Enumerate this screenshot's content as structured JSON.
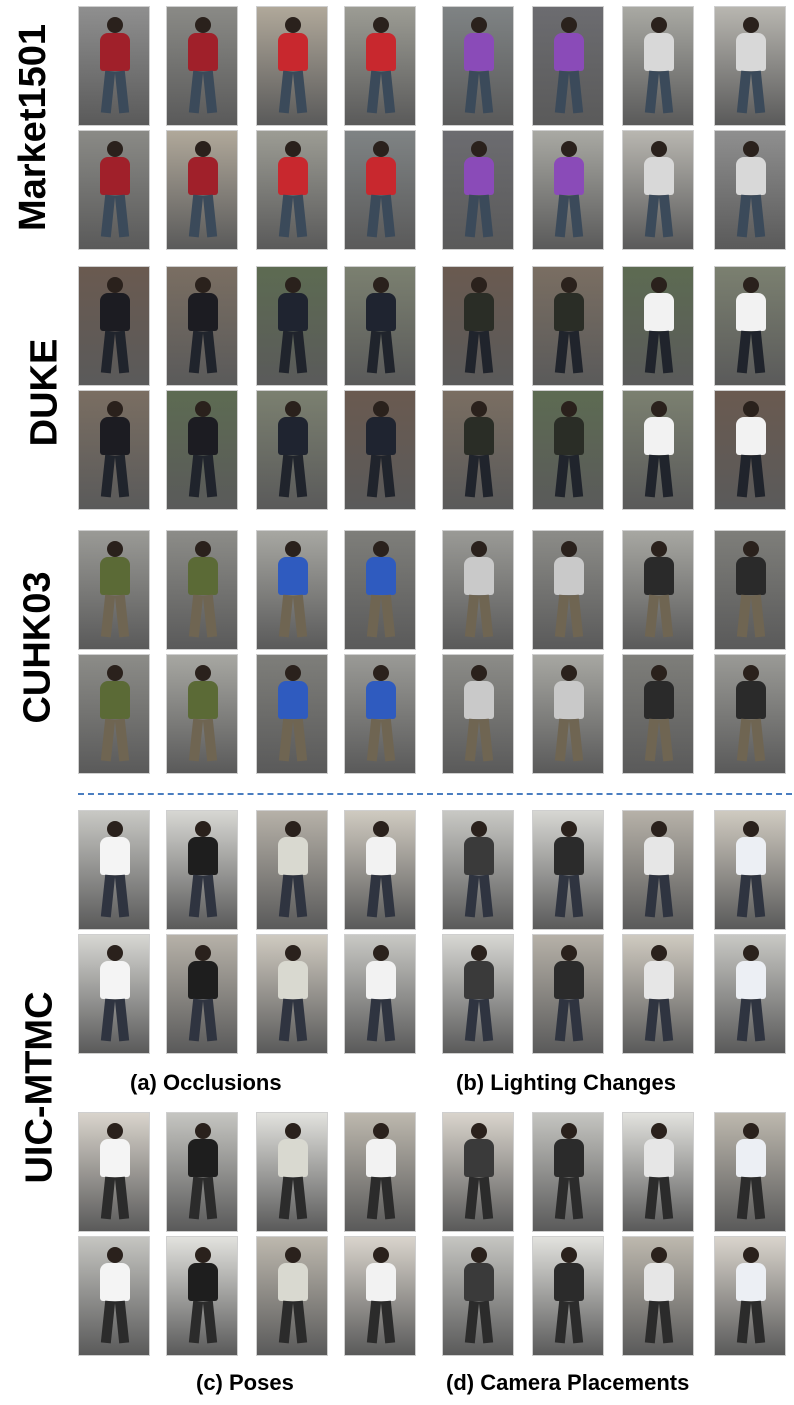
{
  "row_labels": {
    "market": "Market1501",
    "duke": "DUKE",
    "cuhk": "CUHK03",
    "uic": "UIC-MTMC"
  },
  "captions": {
    "a": "(a) Occlusions",
    "b": "(b) Lighting Changes",
    "c": "(c) Poses",
    "d": "(d) Camera Placements"
  },
  "colors": {
    "divider": "#4a7dc0",
    "market_shirts": [
      "#a0202a",
      "#a0202a",
      "#c8282e",
      "#c8282e",
      "#8a4bb8",
      "#8a4bb8",
      "#d8d8d8",
      "#d8d8d8"
    ],
    "duke_shirts": [
      "#1c1c22",
      "#1c1c22",
      "#1f2430",
      "#1f2430",
      "#2a2d26",
      "#2a2d26",
      "#f2f2f2",
      "#f2f2f2"
    ],
    "cuhk_shirts": [
      "#5b6a36",
      "#5b6a36",
      "#2f5bbf",
      "#2f5bbf",
      "#c9c9c9",
      "#c9c9c9",
      "#2a2a2a",
      "#2a2a2a"
    ],
    "uic_shirts": [
      "#f4f4f4",
      "#1e1e1e",
      "#d9d9d0",
      "#f2f2f2",
      "#3a3a3a",
      "#2b2b2b",
      "#e6e6e6",
      "#eceff4"
    ]
  }
}
